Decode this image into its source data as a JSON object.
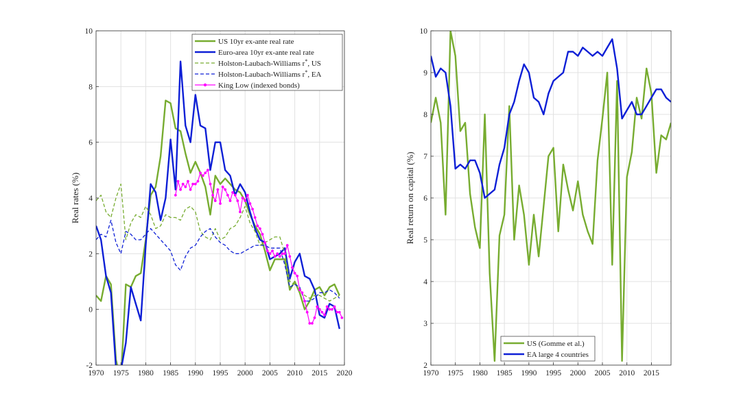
{
  "chart_data": [
    {
      "type": "line",
      "ylabel": "Real rates (%)",
      "xlim": [
        1970,
        2020
      ],
      "ylim": [
        -2,
        10
      ],
      "xticks": [
        1970,
        1975,
        1980,
        1985,
        1990,
        1995,
        2000,
        2005,
        2010,
        2015,
        2020
      ],
      "yticks": [
        -2,
        0,
        2,
        4,
        6,
        8,
        10
      ],
      "grid": true,
      "legend_position": "top-right",
      "series": [
        {
          "name": "US 10yr ex-ante real rate",
          "color": "#77ac30",
          "style": "solid",
          "x": [
            1970,
            1971,
            1972,
            1973,
            1974,
            1975,
            1976,
            1977,
            1978,
            1979,
            1980,
            1981,
            1982,
            1983,
            1984,
            1985,
            1986,
            1987,
            1988,
            1989,
            1990,
            1991,
            1992,
            1993,
            1994,
            1995,
            1996,
            1997,
            1998,
            1999,
            2000,
            2001,
            2002,
            2003,
            2004,
            2005,
            2006,
            2007,
            2008,
            2009,
            2010,
            2011,
            2012,
            2013,
            2014,
            2015,
            2016,
            2017,
            2018,
            2019
          ],
          "y": [
            0.5,
            0.3,
            1.2,
            0.9,
            -1.8,
            -2.6,
            0.9,
            0.8,
            1.2,
            1.3,
            2.5,
            4.1,
            4.4,
            5.5,
            7.5,
            7.4,
            6.5,
            6.4,
            5.6,
            4.9,
            5.3,
            4.9,
            4.4,
            3.4,
            4.8,
            4.5,
            4.7,
            4.5,
            4.3,
            4.2,
            3.9,
            3.4,
            3.0,
            2.7,
            2.1,
            1.4,
            1.8,
            1.8,
            1.8,
            0.7,
            1.0,
            0.6,
            0.0,
            0.3,
            0.7,
            0.8,
            0.5,
            0.8,
            0.9,
            0.5
          ]
        },
        {
          "name": "Euro-area 10yr ex-ante real rate",
          "color": "#0d1fd6",
          "style": "solid",
          "x": [
            1970,
            1971,
            1972,
            1973,
            1974,
            1975,
            1976,
            1977,
            1978,
            1979,
            1980,
            1981,
            1982,
            1983,
            1984,
            1985,
            1986,
            1987,
            1988,
            1989,
            1990,
            1991,
            1992,
            1993,
            1994,
            1995,
            1996,
            1997,
            1998,
            1999,
            2000,
            2001,
            2002,
            2003,
            2004,
            2005,
            2006,
            2007,
            2008,
            2009,
            2010,
            2011,
            2012,
            2013,
            2014,
            2015,
            2016,
            2017,
            2018,
            2019
          ],
          "y": [
            3.0,
            2.5,
            1.2,
            0.6,
            -2.1,
            -2.2,
            -1.2,
            0.8,
            0.2,
            -0.4,
            2.3,
            4.5,
            4.2,
            3.2,
            4.0,
            6.1,
            4.3,
            8.9,
            6.6,
            6.0,
            7.7,
            6.6,
            6.5,
            5.0,
            6.0,
            6.0,
            5.0,
            4.8,
            4.1,
            4.5,
            4.2,
            3.5,
            2.9,
            2.5,
            2.4,
            1.8,
            1.9,
            2.0,
            2.2,
            1.1,
            1.7,
            2.0,
            1.2,
            1.1,
            0.7,
            -0.2,
            -0.3,
            0.2,
            0.1,
            -0.7
          ]
        },
        {
          "name": "Holston-Laubach-Williams r*, US",
          "color": "#77ac30",
          "style": "dashed",
          "x": [
            1970,
            1971,
            1972,
            1973,
            1974,
            1975,
            1976,
            1977,
            1978,
            1979,
            1980,
            1981,
            1982,
            1983,
            1984,
            1985,
            1986,
            1987,
            1988,
            1989,
            1990,
            1991,
            1992,
            1993,
            1994,
            1995,
            1996,
            1997,
            1998,
            1999,
            2000,
            2001,
            2002,
            2003,
            2004,
            2005,
            2006,
            2007,
            2008,
            2009,
            2010,
            2011,
            2012,
            2013,
            2014,
            2015,
            2016,
            2017,
            2018,
            2019
          ],
          "y": [
            3.9,
            4.1,
            3.5,
            3.3,
            4.0,
            4.5,
            2.5,
            3.1,
            3.4,
            3.3,
            3.7,
            3.4,
            2.9,
            3.0,
            3.4,
            3.3,
            3.3,
            3.2,
            3.6,
            3.7,
            3.5,
            2.8,
            2.6,
            2.5,
            2.9,
            2.5,
            2.6,
            2.9,
            3.0,
            3.3,
            3.7,
            3.1,
            2.8,
            2.3,
            2.4,
            2.5,
            2.6,
            2.6,
            2.0,
            1.0,
            0.9,
            0.7,
            0.5,
            0.4,
            0.5,
            0.5,
            0.4,
            0.3,
            0.4,
            0.5
          ]
        },
        {
          "name": "Holston-Laubach-Williams r*, EA",
          "color": "#0d1fd6",
          "style": "dashed",
          "x": [
            1970,
            1971,
            1972,
            1973,
            1974,
            1975,
            1976,
            1977,
            1978,
            1979,
            1980,
            1981,
            1982,
            1983,
            1984,
            1985,
            1986,
            1987,
            1988,
            1989,
            1990,
            1991,
            1992,
            1993,
            1994,
            1995,
            1996,
            1997,
            1998,
            1999,
            2000,
            2001,
            2002,
            2003,
            2004,
            2005,
            2006,
            2007,
            2008,
            2009,
            2010,
            2011,
            2012,
            2013,
            2014,
            2015,
            2016,
            2017,
            2018,
            2019
          ],
          "y": [
            2.5,
            2.7,
            2.6,
            3.2,
            2.4,
            2.0,
            2.8,
            2.7,
            2.5,
            2.5,
            2.7,
            2.9,
            2.7,
            2.5,
            2.3,
            2.1,
            1.6,
            1.4,
            1.9,
            2.2,
            2.3,
            2.6,
            2.8,
            2.9,
            2.6,
            2.4,
            2.3,
            2.1,
            2.0,
            2.0,
            2.1,
            2.2,
            2.3,
            2.3,
            2.3,
            2.2,
            2.2,
            2.2,
            1.6,
            0.8,
            0.9,
            0.8,
            0.3,
            0.3,
            0.4,
            0.6,
            0.6,
            0.7,
            0.6,
            0.4
          ]
        },
        {
          "name": "King Low (indexed bonds)",
          "color": "#ff00ff",
          "style": "solid-marker",
          "x": [
            1986.0,
            1986.5,
            1987.0,
            1987.5,
            1988.0,
            1988.5,
            1989.0,
            1989.5,
            1990.0,
            1990.5,
            1991.0,
            1991.5,
            1992.0,
            1992.5,
            1993.0,
            1993.5,
            1994.0,
            1994.5,
            1995.0,
            1995.5,
            1996.0,
            1996.5,
            1997.0,
            1997.5,
            1998.0,
            1998.5,
            1999.0,
            1999.5,
            2000.0,
            2000.5,
            2001.0,
            2001.5,
            2002.0,
            2002.5,
            2003.0,
            2003.5,
            2004.0,
            2004.5,
            2005.0,
            2005.5,
            2006.0,
            2006.5,
            2007.0,
            2007.5,
            2008.0,
            2008.5,
            2009.0,
            2009.5,
            2010.0,
            2010.5,
            2011.0,
            2011.5,
            2012.0,
            2012.5,
            2013.0,
            2013.5,
            2014.0,
            2014.5,
            2015.0,
            2015.5,
            2016.0,
            2016.5,
            2017.0,
            2017.5,
            2018.0,
            2018.5,
            2019.0,
            2019.5
          ],
          "y": [
            4.1,
            4.6,
            4.3,
            4.5,
            4.4,
            4.6,
            4.3,
            4.5,
            4.5,
            4.6,
            4.9,
            4.8,
            4.9,
            5.0,
            4.5,
            4.1,
            3.9,
            4.3,
            3.8,
            4.4,
            4.3,
            4.1,
            3.9,
            4.2,
            4.1,
            3.9,
            3.5,
            4.0,
            3.9,
            4.1,
            3.8,
            3.6,
            3.3,
            3.0,
            2.9,
            2.7,
            2.4,
            2.1,
            2.0,
            2.1,
            1.9,
            2.0,
            1.9,
            2.0,
            2.0,
            2.3,
            1.9,
            1.5,
            1.3,
            1.2,
            0.7,
            0.6,
            0.3,
            -0.1,
            -0.5,
            -0.5,
            -0.3,
            0.1,
            0.0,
            -0.1,
            -0.2,
            0.1,
            0.0,
            0.0,
            0.1,
            -0.1,
            -0.1,
            -0.3
          ]
        }
      ]
    },
    {
      "type": "line",
      "ylabel": "Real return on capital (%)",
      "xlim": [
        1970,
        2019
      ],
      "ylim": [
        2,
        10
      ],
      "xticks": [
        1970,
        1975,
        1980,
        1985,
        1990,
        1995,
        2000,
        2005,
        2010,
        2015
      ],
      "yticks": [
        2,
        3,
        4,
        5,
        6,
        7,
        8,
        9,
        10
      ],
      "grid": true,
      "legend_position": "bottom-right",
      "series": [
        {
          "name": "US (Gomme et al.)",
          "color": "#77ac30",
          "style": "solid",
          "x": [
            1970,
            1971,
            1972,
            1973,
            1974,
            1975,
            1976,
            1977,
            1978,
            1979,
            1980,
            1981,
            1982,
            1983,
            1984,
            1985,
            1986,
            1987,
            1988,
            1989,
            1990,
            1991,
            1992,
            1993,
            1994,
            1995,
            1996,
            1997,
            1998,
            1999,
            2000,
            2001,
            2002,
            2003,
            2004,
            2005,
            2006,
            2007,
            2008,
            2009,
            2010,
            2011,
            2012,
            2013,
            2014,
            2015,
            2016,
            2017,
            2018,
            2019
          ],
          "y": [
            7.8,
            8.4,
            7.8,
            5.6,
            10.0,
            9.4,
            7.6,
            7.8,
            6.1,
            5.3,
            4.8,
            8.0,
            4.2,
            2.1,
            5.1,
            5.6,
            8.2,
            5.0,
            6.3,
            5.6,
            4.4,
            5.6,
            4.6,
            5.8,
            7.0,
            7.2,
            5.2,
            6.8,
            6.2,
            5.7,
            6.4,
            5.6,
            5.2,
            4.9,
            6.9,
            7.9,
            9.0,
            4.4,
            8.8,
            2.1,
            6.5,
            7.1,
            8.4,
            7.9,
            9.1,
            8.5,
            6.6,
            7.5,
            7.4,
            7.8
          ]
        },
        {
          "name": "EA large 4 countries",
          "color": "#0d1fd6",
          "style": "solid",
          "x": [
            1970,
            1971,
            1972,
            1973,
            1974,
            1975,
            1976,
            1977,
            1978,
            1979,
            1980,
            1981,
            1982,
            1983,
            1984,
            1985,
            1986,
            1987,
            1988,
            1989,
            1990,
            1991,
            1992,
            1993,
            1994,
            1995,
            1996,
            1997,
            1998,
            1999,
            2000,
            2001,
            2002,
            2003,
            2004,
            2005,
            2006,
            2007,
            2008,
            2009,
            2010,
            2011,
            2012,
            2013,
            2014,
            2015,
            2016,
            2017,
            2018,
            2019
          ],
          "y": [
            9.4,
            8.9,
            9.1,
            9.0,
            8.2,
            6.7,
            6.8,
            6.7,
            6.9,
            6.9,
            6.6,
            6.0,
            6.1,
            6.2,
            6.8,
            7.2,
            8.0,
            8.3,
            8.8,
            9.2,
            9.0,
            8.4,
            8.3,
            8.0,
            8.5,
            8.8,
            8.9,
            9.0,
            9.5,
            9.5,
            9.4,
            9.6,
            9.5,
            9.4,
            9.5,
            9.4,
            9.6,
            9.8,
            9.1,
            7.9,
            8.1,
            8.3,
            8.0,
            8.0,
            8.2,
            8.4,
            8.6,
            8.6,
            8.4,
            8.3
          ]
        }
      ]
    }
  ]
}
